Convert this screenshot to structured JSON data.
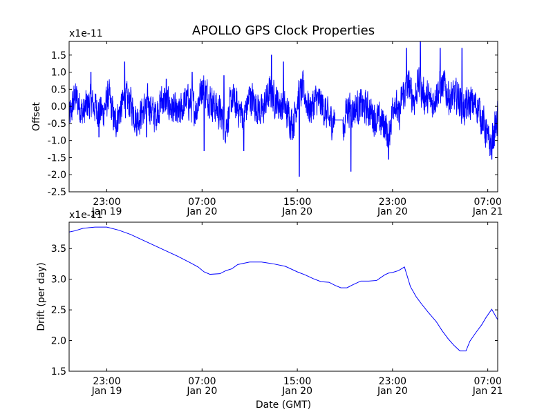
{
  "title": "APOLLO GPS Clock Properties",
  "xlabel": "Date (GMT)",
  "colors": {
    "line": "#0000ff",
    "axes": "#000000",
    "background": "#ffffff"
  },
  "chart_data": [
    {
      "type": "line",
      "ylabel": "Offset",
      "multiplier": "x1e-11",
      "ylim": [
        -2.5,
        1.9
      ],
      "yticks": [
        -2.5,
        -2.0,
        -1.5,
        -1.0,
        -0.5,
        0.0,
        0.5,
        1.0,
        1.5
      ],
      "ytick_labels": [
        "-2.5",
        "-2.0",
        "-1.5",
        "-1.0",
        "-0.5",
        "0.0",
        "0.5",
        "1.0",
        "1.5"
      ],
      "xlim": [
        "2012-01-19 19:50",
        "2012-01-21 07:50"
      ],
      "xticks": [
        {
          "at": "2012-01-19 23:00",
          "time": "23:00",
          "date": "Jan 19"
        },
        {
          "at": "2012-01-20 07:00",
          "time": "07:00",
          "date": "Jan 20"
        },
        {
          "at": "2012-01-20 15:00",
          "time": "15:00",
          "date": "Jan 20"
        },
        {
          "at": "2012-01-20 23:00",
          "time": "23:00",
          "date": "Jan 20"
        },
        {
          "at": "2012-01-21 07:00",
          "time": "07:00",
          "date": "Jan 21"
        }
      ],
      "series": [
        {
          "color": "#0000ff",
          "x": [
            "2012-01-19 19:50",
            "2012-01-19 20:20",
            "2012-01-19 21:00",
            "2012-01-19 21:30",
            "2012-01-19 22:00",
            "2012-01-19 22:40",
            "2012-01-19 23:10",
            "2012-01-19 23:40",
            "2012-01-20 00:30",
            "2012-01-20 01:00",
            "2012-01-20 01:30",
            "2012-01-20 02:30",
            "2012-01-20 03:00",
            "2012-01-20 03:40",
            "2012-01-20 04:20",
            "2012-01-20 05:00",
            "2012-01-20 05:40",
            "2012-01-20 06:30",
            "2012-01-20 07:00",
            "2012-01-20 07:30",
            "2012-01-20 08:30",
            "2012-01-20 09:00",
            "2012-01-20 09:30",
            "2012-01-20 10:30",
            "2012-01-20 11:00",
            "2012-01-20 12:00",
            "2012-01-20 12:40",
            "2012-01-20 13:10",
            "2012-01-20 14:00",
            "2012-01-20 14:40",
            "2012-01-20 15:00",
            "2012-01-20 15:30",
            "2012-01-20 16:00",
            "2012-01-20 16:40",
            "2012-01-20 17:10",
            "2012-01-20 17:40",
            "2012-01-20 18:10",
            "2012-01-20 18:20",
            "2012-01-20 18:40",
            "2012-01-20 19:10",
            "2012-01-20 19:30",
            "2012-01-20 20:20",
            "2012-01-20 21:00",
            "2012-01-20 21:40",
            "2012-01-20 22:20",
            "2012-01-20 22:40",
            "2012-01-20 23:10",
            "2012-01-20 23:30",
            "2012-01-20 23:50",
            "2012-01-21 00:20",
            "2012-01-21 00:50",
            "2012-01-21 01:10",
            "2012-01-21 01:40",
            "2012-01-21 02:20",
            "2012-01-21 02:50",
            "2012-01-21 03:20",
            "2012-01-21 03:50",
            "2012-01-21 04:30",
            "2012-01-21 05:00",
            "2012-01-21 05:30",
            "2012-01-21 06:10",
            "2012-01-21 06:40",
            "2012-01-21 07:00",
            "2012-01-21 07:20",
            "2012-01-21 07:50"
          ],
          "y": [
            -0.4,
            0.3,
            -0.2,
            0.1,
            0.0,
            -0.2,
            0.3,
            -0.5,
            0.2,
            0.1,
            -0.4,
            0.1,
            -0.3,
            0.2,
            0.0,
            -0.3,
            0.2,
            -0.1,
            0.6,
            0.3,
            -0.2,
            -0.6,
            0.2,
            -0.3,
            0.3,
            -0.2,
            0.4,
            0.2,
            -0.1,
            -0.5,
            0.2,
            0.5,
            -0.1,
            0.2,
            0.0,
            -0.4,
            -0.4,
            -0.4,
            -1.2,
            0.0,
            -0.1,
            0.0,
            -0.1,
            -0.4,
            -0.5,
            -0.9,
            0.3,
            -0.4,
            0.3,
            0.6,
            0.2,
            0.7,
            0.3,
            0.1,
            0.5,
            0.6,
            0.2,
            0.3,
            -0.1,
            0.1,
            0.0,
            -0.5,
            -1.0,
            -1.1,
            -0.3
          ],
          "noise_amplitude": 0.45,
          "spikes": [
            {
              "x": "2012-01-19 21:40",
              "y": 1.0
            },
            {
              "x": "2012-01-19 22:20",
              "y": -0.9
            },
            {
              "x": "2012-01-20 00:30",
              "y": 1.3
            },
            {
              "x": "2012-01-20 02:20",
              "y": -0.9
            },
            {
              "x": "2012-01-20 04:00",
              "y": 0.8
            },
            {
              "x": "2012-01-20 06:10",
              "y": 1.0
            },
            {
              "x": "2012-01-20 07:10",
              "y": -1.3
            },
            {
              "x": "2012-01-20 08:50",
              "y": 0.9
            },
            {
              "x": "2012-01-20 10:30",
              "y": -1.3
            },
            {
              "x": "2012-01-20 12:50",
              "y": 1.5
            },
            {
              "x": "2012-01-20 13:50",
              "y": 1.3
            },
            {
              "x": "2012-01-20 15:10",
              "y": -2.05
            },
            {
              "x": "2012-01-20 19:30",
              "y": -1.9
            },
            {
              "x": "2012-01-20 22:40",
              "y": -1.55
            },
            {
              "x": "2012-01-21 00:10",
              "y": 1.7
            },
            {
              "x": "2012-01-21 01:20",
              "y": 1.9
            },
            {
              "x": "2012-01-21 03:00",
              "y": 1.7
            },
            {
              "x": "2012-01-21 04:50",
              "y": 1.7
            },
            {
              "x": "2012-01-21 07:20",
              "y": -1.55
            }
          ],
          "quiet_intervals": [
            {
              "from": "2012-01-20 18:10",
              "to": "2012-01-20 18:50",
              "y": -0.4
            }
          ]
        }
      ]
    },
    {
      "type": "line",
      "ylabel": "Drift (per day)",
      "multiplier": "x1e-11",
      "ylim": [
        1.5,
        3.93
      ],
      "yticks": [
        1.5,
        2.0,
        2.5,
        3.0,
        3.5
      ],
      "ytick_labels": [
        "1.5",
        "2.0",
        "2.5",
        "3.0",
        "3.5"
      ],
      "xlim": [
        "2012-01-19 19:50",
        "2012-01-21 07:50"
      ],
      "xticks": [
        {
          "at": "2012-01-19 23:00",
          "time": "23:00",
          "date": "Jan 19"
        },
        {
          "at": "2012-01-20 07:00",
          "time": "07:00",
          "date": "Jan 20"
        },
        {
          "at": "2012-01-20 15:00",
          "time": "15:00",
          "date": "Jan 20"
        },
        {
          "at": "2012-01-20 23:00",
          "time": "23:00",
          "date": "Jan 20"
        },
        {
          "at": "2012-01-21 07:00",
          "time": "07:00",
          "date": "Jan 21"
        }
      ],
      "series": [
        {
          "color": "#0000ff",
          "x": [
            "2012-01-19 19:50",
            "2012-01-19 20:20",
            "2012-01-19 21:00",
            "2012-01-19 22:00",
            "2012-01-19 23:00",
            "2012-01-20 00:00",
            "2012-01-20 01:00",
            "2012-01-20 02:00",
            "2012-01-20 03:00",
            "2012-01-20 04:00",
            "2012-01-20 05:00",
            "2012-01-20 06:00",
            "2012-01-20 06:40",
            "2012-01-20 07:10",
            "2012-01-20 07:40",
            "2012-01-20 08:30",
            "2012-01-20 09:00",
            "2012-01-20 09:30",
            "2012-01-20 10:00",
            "2012-01-20 11:00",
            "2012-01-20 12:00",
            "2012-01-20 13:00",
            "2012-01-20 14:00",
            "2012-01-20 15:00",
            "2012-01-20 15:40",
            "2012-01-20 16:20",
            "2012-01-20 17:00",
            "2012-01-20 17:40",
            "2012-01-20 18:10",
            "2012-01-20 18:40",
            "2012-01-20 19:10",
            "2012-01-20 19:40",
            "2012-01-20 20:20",
            "2012-01-20 21:00",
            "2012-01-20 21:40",
            "2012-01-20 22:20",
            "2012-01-20 22:40",
            "2012-01-20 23:00",
            "2012-01-20 23:30",
            "2012-01-21 00:00",
            "2012-01-21 00:30",
            "2012-01-21 01:00",
            "2012-01-21 01:30",
            "2012-01-21 02:00",
            "2012-01-21 02:40",
            "2012-01-21 03:10",
            "2012-01-21 03:40",
            "2012-01-21 04:10",
            "2012-01-21 04:40",
            "2012-01-21 05:10",
            "2012-01-21 05:30",
            "2012-01-21 06:00",
            "2012-01-21 06:30",
            "2012-01-21 06:50",
            "2012-01-21 07:20",
            "2012-01-21 07:50"
          ],
          "y": [
            3.77,
            3.79,
            3.83,
            3.85,
            3.85,
            3.8,
            3.73,
            3.64,
            3.55,
            3.46,
            3.37,
            3.27,
            3.2,
            3.12,
            3.08,
            3.09,
            3.14,
            3.17,
            3.24,
            3.28,
            3.28,
            3.25,
            3.21,
            3.12,
            3.07,
            3.01,
            2.96,
            2.95,
            2.9,
            2.86,
            2.86,
            2.91,
            2.97,
            2.97,
            2.98,
            3.07,
            3.1,
            3.11,
            3.14,
            3.2,
            2.88,
            2.71,
            2.58,
            2.46,
            2.31,
            2.16,
            2.03,
            1.92,
            1.83,
            1.83,
            1.99,
            2.13,
            2.26,
            2.37,
            2.51,
            2.34
          ]
        }
      ]
    }
  ]
}
